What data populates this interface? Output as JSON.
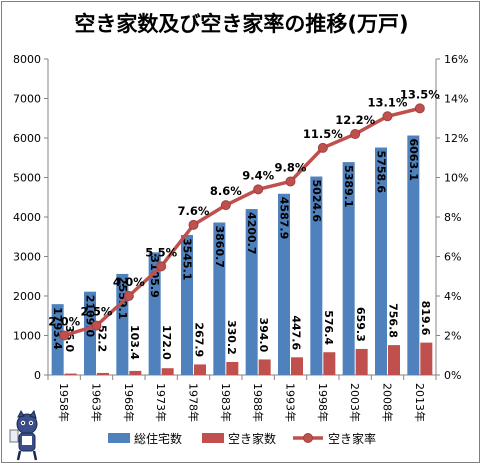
{
  "title": "空き家数及び空き家率の推移(万戸)",
  "chart_data": {
    "type": "bar",
    "title": "空き家数及び空き家率の推移(万戸)",
    "categories": [
      "1958年",
      "1963年",
      "1968年",
      "1973年",
      "1978年",
      "1983年",
      "1988年",
      "1993年",
      "1998年",
      "2003年",
      "2008年",
      "2013年"
    ],
    "series": [
      {
        "name": "総住宅数",
        "type": "bar",
        "axis": "left",
        "values": [
          1793.4,
          2109.0,
          2559.1,
          3105.9,
          3545.1,
          3860.7,
          4200.7,
          4587.9,
          5024.6,
          5389.1,
          5758.6,
          6063.1
        ],
        "labels": [
          "1793.4",
          "2109.0",
          "2559.1",
          "3105.9",
          "3545.1",
          "3860.7",
          "4200.7",
          "4587.9",
          "5024.6",
          "5389.1",
          "5758.6",
          "6063.1"
        ]
      },
      {
        "name": "空き家数",
        "type": "bar",
        "axis": "left",
        "values": [
          36.0,
          52.2,
          103.4,
          172.0,
          267.9,
          330.2,
          394.0,
          447.6,
          576.4,
          659.3,
          756.8,
          819.6
        ],
        "labels": [
          "36.0",
          "52.2",
          "103.4",
          "172.0",
          "267.9",
          "330.2",
          "394.0",
          "447.6",
          "576.4",
          "659.3",
          "756.8",
          "819.6"
        ]
      },
      {
        "name": "空き家率",
        "type": "line",
        "axis": "right",
        "values": [
          2.0,
          2.5,
          4.0,
          5.5,
          7.6,
          8.6,
          9.4,
          9.8,
          11.5,
          12.2,
          13.1,
          13.5
        ],
        "labels": [
          "2.0%",
          "2.5%",
          "4.0%",
          "5.5%",
          "7.6%",
          "8.6%",
          "9.4%",
          "9.8%",
          "11.5%",
          "12.2%",
          "13.1%",
          "13.5%"
        ]
      }
    ],
    "ylim": [
      0,
      8000
    ],
    "y2lim": [
      0,
      16
    ],
    "yticks": [
      "0",
      "1000",
      "2000",
      "3000",
      "4000",
      "5000",
      "6000",
      "7000",
      "8000"
    ],
    "y2ticks": [
      "0%",
      "2%",
      "4%",
      "6%",
      "8%",
      "10%",
      "12%",
      "14%",
      "16%"
    ],
    "legend_position": "bottom",
    "grid": false,
    "colors": {
      "bar1": "#4f81bd",
      "bar2": "#c0504d",
      "line": "#c0504d",
      "marker": "#c0504d"
    }
  }
}
